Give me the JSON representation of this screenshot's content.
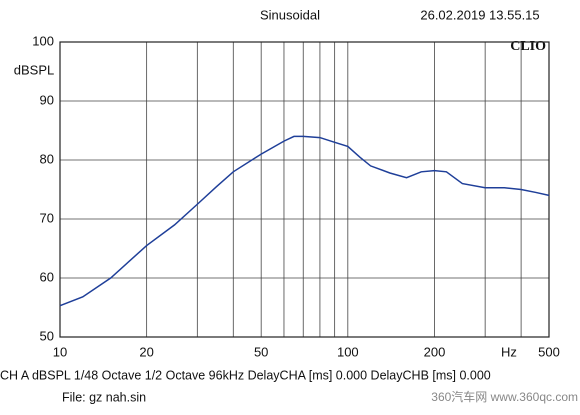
{
  "chart_data": {
    "type": "line",
    "title": "Sinusoidal",
    "timestamp": "26.02.2019 13.55.15",
    "brand": "CLIO",
    "y_label": "dBSPL",
    "x_label": "Hz",
    "x_scale": "log",
    "grid": true,
    "x": [
      10,
      12,
      15,
      20,
      25,
      30,
      35,
      40,
      50,
      60,
      65,
      70,
      80,
      90,
      100,
      110,
      120,
      140,
      160,
      180,
      200,
      220,
      250,
      300,
      350,
      400,
      450,
      500
    ],
    "series": [
      {
        "color": "#1f3f99",
        "values": [
          55.3,
          56.8,
          60,
          65.5,
          69,
          72.5,
          75.5,
          78,
          81,
          83.2,
          84,
          84,
          83.8,
          83,
          82.3,
          80.5,
          79,
          77.8,
          77,
          78,
          78.2,
          78,
          76,
          75.3,
          75.3,
          75,
          74.5,
          74
        ]
      }
    ],
    "xlim": [
      10,
      500
    ],
    "ylim": [
      50,
      100
    ],
    "xticks": [
      10,
      20,
      50,
      100,
      200,
      500
    ],
    "minor_xticks": [
      30,
      40,
      60,
      70,
      80,
      90,
      300,
      400
    ],
    "yticks": [
      50,
      60,
      70,
      80,
      90,
      100
    ]
  },
  "footer": {
    "settings": "CH A   dBSPL   1/48 Octave   1/2 Octave   96kHz   DelayCHA [ms] 0.000   DelayCHB [ms] 0.000",
    "file": "File: gz nah.sin"
  },
  "watermark": "360汽车网 www.360qc.com"
}
